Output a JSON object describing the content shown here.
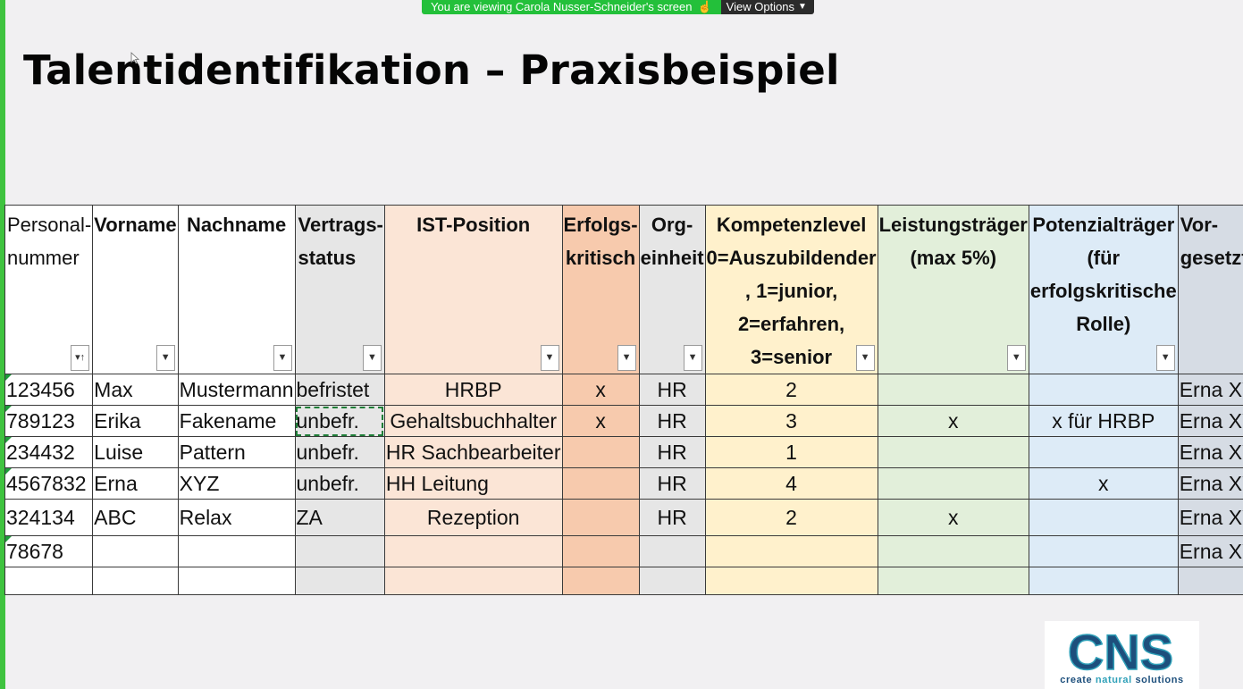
{
  "banner": {
    "viewing_text": "You are viewing Carola Nusser-Schneider's screen",
    "view_options_label": "View Options"
  },
  "slide": {
    "title": "Talentidentifikation – Praxisbeispiel"
  },
  "table": {
    "headers": [
      {
        "line1": "Personal-",
        "line2": "nummer"
      },
      {
        "text": "Vorname"
      },
      {
        "text": "Nachname"
      },
      {
        "line1": "Vertrags-",
        "line2": "status"
      },
      {
        "text": "IST-Position"
      },
      {
        "line1": "Erfolgs-",
        "line2": "kritisch"
      },
      {
        "text": "Org-einheit"
      },
      {
        "line1": "Kompetenzlevel",
        "line2": "0=Auszubildender",
        "line3": ", 1=junior,",
        "line4": "2=erfahren,",
        "line5": "3=senior"
      },
      {
        "line1": "Leistungsträger",
        "line2": "(max 5%)"
      },
      {
        "line1": "Potenzialträger",
        "line2": "(für",
        "line3": "erfolgskritische",
        "line4": "Rolle)"
      },
      {
        "line1": "Vor-",
        "line2": "gesetzter"
      }
    ],
    "rows": [
      {
        "personal": "123456",
        "vorname": "Max",
        "nachname": "Mustermann",
        "vertrag": "befristet",
        "position": "HRBP",
        "erfolg": "x",
        "org": "HR",
        "kompetenz": "2",
        "leistung": "",
        "potenzial": "",
        "vorgesetzter": "Erna XYZ"
      },
      {
        "personal": "789123",
        "vorname": "Erika",
        "nachname": "Fakename",
        "vertrag": "unbefr.",
        "position": "Gehaltsbuchhalter",
        "erfolg": "x",
        "org": "HR",
        "kompetenz": "3",
        "leistung": "x",
        "potenzial": "x für HRBP",
        "vorgesetzter": "Erna XYZ"
      },
      {
        "personal": "234432",
        "vorname": "Luise",
        "nachname": "Pattern",
        "vertrag": "unbefr.",
        "position": "HR Sachbearbeiter",
        "erfolg": "",
        "org": "HR",
        "kompetenz": "1",
        "leistung": "",
        "potenzial": "",
        "vorgesetzter": "Erna XYZ"
      },
      {
        "personal": "4567832",
        "vorname": "Erna",
        "nachname": "XYZ",
        "vertrag": "unbefr.",
        "position": "HH Leitung",
        "erfolg": "",
        "org": "HR",
        "kompetenz": "4",
        "leistung": "",
        "potenzial": "x",
        "vorgesetzter": "Erna XYZ"
      },
      {
        "personal": "324134",
        "vorname": "ABC",
        "nachname": "Relax",
        "vertrag": "ZA",
        "position": "Rezeption",
        "erfolg": "",
        "org": "HR",
        "kompetenz": "2",
        "leistung": "x",
        "potenzial": "",
        "vorgesetzter": "Erna XYZ"
      },
      {
        "personal": "78678",
        "vorname": "",
        "nachname": "",
        "vertrag": "",
        "position": "",
        "erfolg": "",
        "org": "",
        "kompetenz": "",
        "leistung": "",
        "potenzial": "",
        "vorgesetzter": "Erna XYZ"
      }
    ]
  },
  "logo": {
    "wordmark": "CNS",
    "tagline_create": "create",
    "tagline_natural": "natural",
    "tagline_solutions": "solutions"
  },
  "colors": {
    "share_green": "#23c03a",
    "header_pink": "#fbe5d6",
    "header_orange": "#f7caad",
    "header_yellow": "#fff1cc",
    "header_green": "#e2efda",
    "header_blue": "#ddebf7",
    "header_slate": "#d6dce4"
  }
}
